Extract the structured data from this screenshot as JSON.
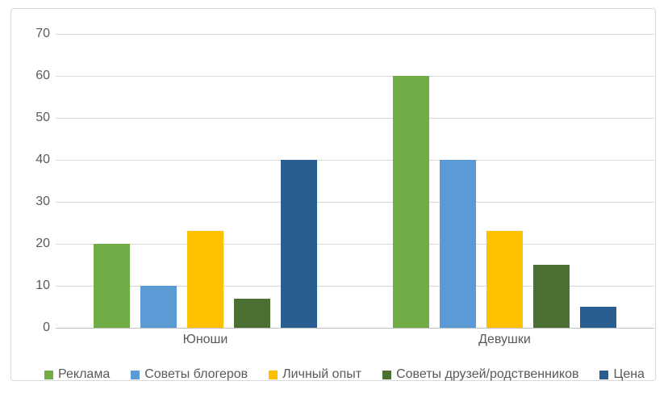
{
  "chart_data": {
    "type": "bar",
    "title": "",
    "xlabel": "",
    "ylabel": "",
    "categories": [
      "Юноши",
      "Девушки"
    ],
    "series": [
      {
        "name": "Реклама",
        "color": "#70AD47",
        "values": [
          20,
          60
        ]
      },
      {
        "name": "Советы блогеров",
        "color": "#5B9BD5",
        "values": [
          10,
          40
        ]
      },
      {
        "name": "Личный опыт",
        "color": "#FFC000",
        "values": [
          23,
          23
        ]
      },
      {
        "name": "Советы друзей/родственников",
        "color": "#4C7031",
        "values": [
          7,
          15
        ]
      },
      {
        "name": "Цена",
        "color": "#285F90",
        "values": [
          40,
          5
        ]
      }
    ],
    "ylim": [
      0,
      70
    ],
    "yticks": [
      0,
      10,
      20,
      30,
      40,
      50,
      60,
      70
    ],
    "grid": true,
    "legend_position": "bottom"
  },
  "colors": {
    "gridline": "#D9D9D9",
    "axis_line": "#BFBFBF",
    "tick_text": "#595959",
    "chart_border": "#D9D9D9",
    "background": "#FFFFFF"
  }
}
